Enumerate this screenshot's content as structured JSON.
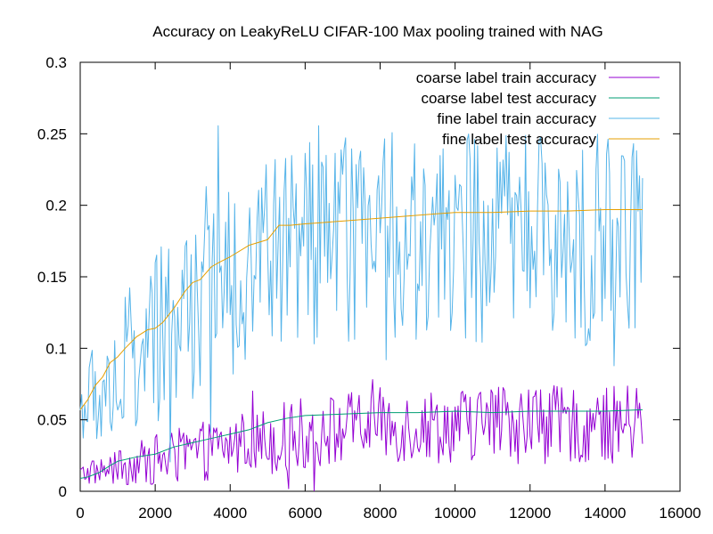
{
  "chart_data": {
    "type": "line",
    "title": "Accuracy on LeakyReLU CIFAR-100 Max pooling trained with NAG",
    "xlabel": "",
    "ylabel": "",
    "xlim": [
      0,
      16000
    ],
    "ylim": [
      0,
      0.3
    ],
    "x_ticks": [
      0,
      2000,
      4000,
      6000,
      8000,
      10000,
      12000,
      14000,
      16000
    ],
    "x_tick_labels": [
      "0",
      "2000",
      "4000",
      "6000",
      "8000",
      "10000",
      "12000",
      "14000",
      "16000"
    ],
    "y_ticks": [
      0,
      0.05,
      0.1,
      0.15,
      0.2,
      0.25,
      0.3
    ],
    "y_tick_labels": [
      "0",
      "0.05",
      "0.1",
      "0.15",
      "0.2",
      "0.25",
      "0.3"
    ],
    "grid": false,
    "legend_position": "top-right",
    "series": [
      {
        "name": "coarse label train accuracy",
        "color": "#9400d3",
        "style": "noisy",
        "x": [
          0,
          1000,
          2000,
          3000,
          4000,
          5000,
          6000,
          7000,
          8000,
          9000,
          10000,
          11000,
          12000,
          13000,
          14000,
          15000
        ],
        "values": [
          0.012,
          0.016,
          0.022,
          0.026,
          0.032,
          0.036,
          0.04,
          0.044,
          0.046,
          0.046,
          0.046,
          0.048,
          0.048,
          0.046,
          0.046,
          0.048
        ],
        "amplitude": [
          0.006,
          0.01,
          0.015,
          0.017,
          0.018,
          0.02,
          0.022,
          0.022,
          0.022,
          0.022,
          0.022,
          0.024,
          0.024,
          0.022,
          0.022,
          0.024
        ]
      },
      {
        "name": "coarse label test accuracy",
        "color": "#009e73",
        "style": "smooth",
        "x": [
          0,
          200,
          500,
          800,
          1000,
          1500,
          2000,
          2500,
          3000,
          3500,
          4000,
          4500,
          5000,
          5500,
          6000,
          7000,
          8000,
          9000,
          10000,
          11000,
          12000,
          13000,
          14000,
          15000
        ],
        "values": [
          0.009,
          0.01,
          0.013,
          0.018,
          0.021,
          0.024,
          0.026,
          0.031,
          0.034,
          0.037,
          0.04,
          0.043,
          0.048,
          0.051,
          0.053,
          0.054,
          0.055,
          0.055,
          0.056,
          0.055,
          0.056,
          0.056,
          0.056,
          0.057
        ]
      },
      {
        "name": "fine label train accuracy",
        "color": "#56b4e9",
        "style": "noisy",
        "x": [
          0,
          500,
          1000,
          1500,
          2000,
          2500,
          3000,
          3500,
          4000,
          4500,
          5000,
          5500,
          6000,
          7000,
          8000,
          9000,
          10000,
          11000,
          12000,
          13000,
          14000,
          15000
        ],
        "values": [
          0.058,
          0.07,
          0.08,
          0.088,
          0.1,
          0.118,
          0.132,
          0.145,
          0.15,
          0.158,
          0.168,
          0.17,
          0.172,
          0.176,
          0.176,
          0.176,
          0.178,
          0.176,
          0.178,
          0.176,
          0.178,
          0.178
        ],
        "amplitude": [
          0.02,
          0.035,
          0.045,
          0.05,
          0.055,
          0.058,
          0.06,
          0.06,
          0.06,
          0.06,
          0.06,
          0.06,
          0.06,
          0.06,
          0.06,
          0.06,
          0.062,
          0.062,
          0.062,
          0.062,
          0.062,
          0.06
        ]
      },
      {
        "name": "fine label test accuracy",
        "color": "#e69f00",
        "style": "smooth",
        "x": [
          0,
          200,
          400,
          600,
          800,
          1000,
          1200,
          1500,
          1800,
          2000,
          2200,
          2500,
          2800,
          3000,
          3200,
          3500,
          3700,
          4000,
          4500,
          5000,
          5300,
          5600,
          6000,
          6500,
          7000,
          7500,
          8000,
          8500,
          9000,
          9500,
          10000,
          11000,
          12000,
          13000,
          14000,
          15000
        ],
        "values": [
          0.057,
          0.064,
          0.074,
          0.08,
          0.09,
          0.094,
          0.1,
          0.108,
          0.113,
          0.114,
          0.118,
          0.128,
          0.14,
          0.146,
          0.148,
          0.157,
          0.16,
          0.164,
          0.172,
          0.176,
          0.186,
          0.186,
          0.187,
          0.188,
          0.189,
          0.19,
          0.191,
          0.192,
          0.193,
          0.194,
          0.195,
          0.195,
          0.196,
          0.196,
          0.197,
          0.197
        ]
      }
    ]
  }
}
